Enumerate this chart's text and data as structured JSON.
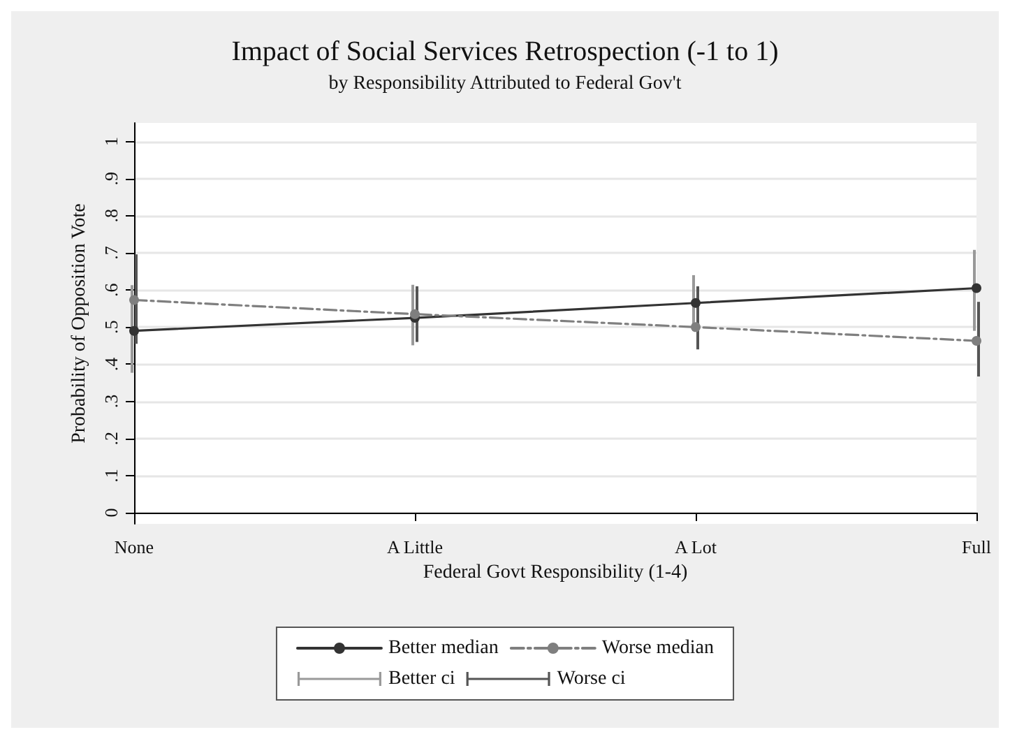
{
  "chart_data": {
    "type": "line",
    "title": "Impact of Social Services Retrospection (-1 to 1)",
    "subtitle": "by Responsibility Attributed to Federal Gov't",
    "xlabel": "Federal Govt Responsibility (1-4)",
    "ylabel": "Probability of Opposition Vote",
    "categories": [
      "None",
      "A Little",
      "A Lot",
      "Full"
    ],
    "series": [
      {
        "name": "Better median",
        "color": "#333333",
        "marker": "circle",
        "line_style": "solid",
        "values": [
          0.49,
          0.525,
          0.565,
          0.605
        ]
      },
      {
        "name": "Worse median",
        "color": "#7f7f7f",
        "marker": "circle",
        "line_style": "dashdot",
        "values": [
          0.573,
          0.535,
          0.5,
          0.463
        ]
      },
      {
        "name": "Better ci",
        "type": "bar",
        "color": "#999999",
        "base": [
          0.377,
          0.451,
          0.49,
          0.49
        ],
        "values": [
          0.236,
          0.163,
          0.15,
          0.218
        ]
      },
      {
        "name": "Worse ci",
        "type": "bar",
        "color": "#555555",
        "base": [
          0.455,
          0.46,
          0.44,
          0.367
        ],
        "values": [
          0.241,
          0.15,
          0.17,
          0.201
        ]
      }
    ],
    "ylim": [
      -0.03,
      1.05
    ],
    "yticks": [
      {
        "value": 0,
        "label": "0"
      },
      {
        "value": 0.1,
        "label": ".1"
      },
      {
        "value": 0.2,
        "label": ".2"
      },
      {
        "value": 0.3,
        "label": ".3"
      },
      {
        "value": 0.4,
        "label": ".4"
      },
      {
        "value": 0.5,
        "label": ".5"
      },
      {
        "value": 0.6,
        "label": ".6"
      },
      {
        "value": 0.7,
        "label": ".7"
      },
      {
        "value": 0.8,
        "label": ".8"
      },
      {
        "value": 0.9,
        "label": ".9"
      },
      {
        "value": 1,
        "label": "1"
      }
    ],
    "grid": "y",
    "legend": "bottom"
  }
}
